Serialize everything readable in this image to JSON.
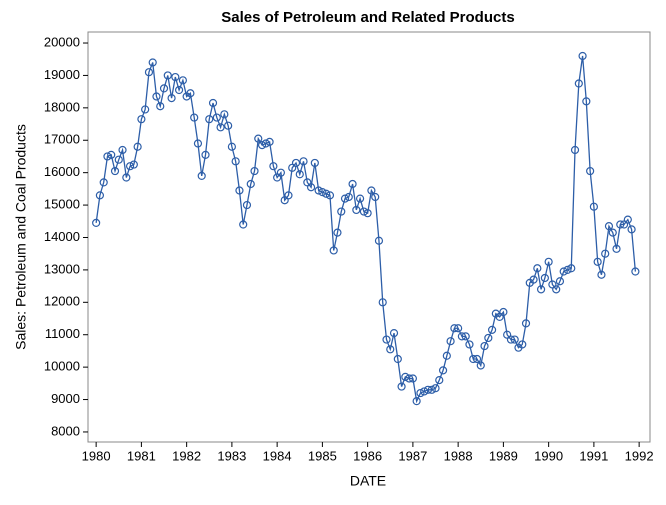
{
  "chart_data": {
    "type": "line",
    "title": "Sales of Petroleum and Related Products",
    "x_label": "DATE",
    "y_label": "Sales: Petroleum and Coal Products",
    "color": "#2d5ea8",
    "xlim": [
      1979.82,
      1992.24
    ],
    "ylim": [
      7690,
      20340
    ],
    "xticks": [
      1980,
      1981,
      1982,
      1983,
      1984,
      1985,
      1986,
      1987,
      1988,
      1989,
      1990,
      1991,
      1992
    ],
    "yticks": [
      8000,
      9000,
      10000,
      11000,
      12000,
      13000,
      14000,
      15000,
      16000,
      17000,
      18000,
      19000,
      20000
    ],
    "x": [
      1980.0,
      1980.083,
      1980.167,
      1980.25,
      1980.333,
      1980.417,
      1980.5,
      1980.583,
      1980.667,
      1980.75,
      1980.833,
      1980.917,
      1981.0,
      1981.083,
      1981.167,
      1981.25,
      1981.333,
      1981.417,
      1981.5,
      1981.583,
      1981.667,
      1981.75,
      1981.833,
      1981.917,
      1982.0,
      1982.083,
      1982.167,
      1982.25,
      1982.333,
      1982.417,
      1982.5,
      1982.583,
      1982.667,
      1982.75,
      1982.833,
      1982.917,
      1983.0,
      1983.083,
      1983.167,
      1983.25,
      1983.333,
      1983.417,
      1983.5,
      1983.583,
      1983.667,
      1983.75,
      1983.833,
      1983.917,
      1984.0,
      1984.083,
      1984.167,
      1984.25,
      1984.333,
      1984.417,
      1984.5,
      1984.583,
      1984.667,
      1984.75,
      1984.833,
      1984.917,
      1985.0,
      1985.083,
      1985.167,
      1985.25,
      1985.333,
      1985.417,
      1985.5,
      1985.583,
      1985.667,
      1985.75,
      1985.833,
      1985.917,
      1986.0,
      1986.083,
      1986.167,
      1986.25,
      1986.333,
      1986.417,
      1986.5,
      1986.583,
      1986.667,
      1986.75,
      1986.833,
      1986.917,
      1987.0,
      1987.083,
      1987.167,
      1987.25,
      1987.333,
      1987.417,
      1987.5,
      1987.583,
      1987.667,
      1987.75,
      1987.833,
      1987.917,
      1988.0,
      1988.083,
      1988.167,
      1988.25,
      1988.333,
      1988.417,
      1988.5,
      1988.583,
      1988.667,
      1988.75,
      1988.833,
      1988.917,
      1989.0,
      1989.083,
      1989.167,
      1989.25,
      1989.333,
      1989.417,
      1989.5,
      1989.583,
      1989.667,
      1989.75,
      1989.833,
      1989.917,
      1990.0,
      1990.083,
      1990.167,
      1990.25,
      1990.333,
      1990.417,
      1990.5,
      1990.583,
      1990.667,
      1990.75,
      1990.833,
      1990.917,
      1991.0,
      1991.083,
      1991.167,
      1991.25,
      1991.333,
      1991.417,
      1991.5,
      1991.583,
      1991.667,
      1991.75,
      1991.833,
      1991.917
    ],
    "values": [
      14450,
      15300,
      15700,
      16500,
      16550,
      16050,
      16400,
      16700,
      15850,
      16200,
      16250,
      16800,
      17650,
      17950,
      19100,
      19400,
      18350,
      18050,
      18600,
      19000,
      18300,
      18950,
      18550,
      18850,
      18350,
      18450,
      17700,
      16900,
      15900,
      16550,
      17650,
      18150,
      17700,
      17400,
      17800,
      17450,
      16800,
      16350,
      15450,
      14400,
      15000,
      15650,
      16050,
      17050,
      16850,
      16900,
      16950,
      16200,
      15850,
      16000,
      15150,
      15300,
      16150,
      16300,
      15950,
      16350,
      15700,
      15550,
      16300,
      15450,
      15400,
      15350,
      15300,
      13600,
      14150,
      14800,
      15200,
      15250,
      15650,
      14850,
      15200,
      14800,
      14750,
      15450,
      15250,
      13900,
      12000,
      10850,
      10550,
      11050,
      10250,
      9400,
      9700,
      9650,
      9650,
      8950,
      9200,
      9250,
      9300,
      9300,
      9350,
      9600,
      9900,
      10350,
      10800,
      11200,
      11200,
      10950,
      10950,
      10700,
      10250,
      10250,
      10050,
      10650,
      10900,
      11150,
      11650,
      11550,
      11700,
      11000,
      10850,
      10850,
      10600,
      10700,
      11350,
      12600,
      12700,
      13050,
      12400,
      12750,
      13250,
      12550,
      12400,
      12650,
      12950,
      13000,
      13050,
      16700,
      18750,
      19600,
      18200,
      16050,
      14950,
      13250,
      12850,
      13500,
      14350,
      14150,
      13650,
      14400,
      14400,
      14550,
      14250,
      12950
    ]
  }
}
